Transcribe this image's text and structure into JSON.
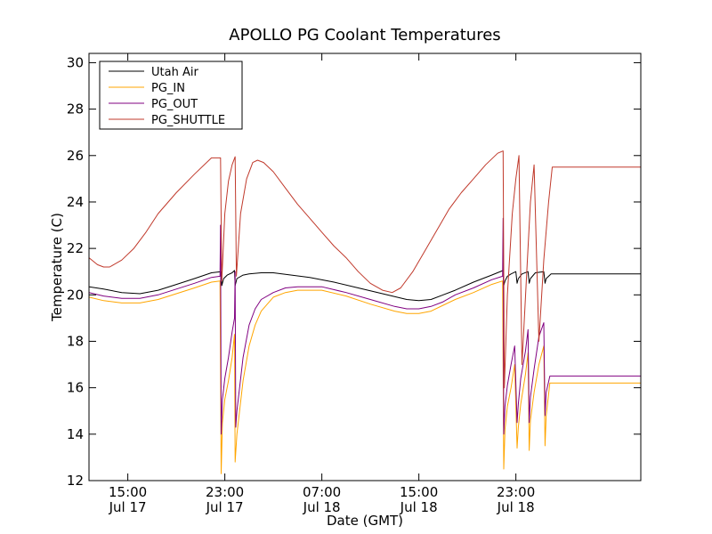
{
  "chart_data": {
    "type": "line",
    "title": "APOLLO PG Coolant Temperatures",
    "xlabel": "Date (GMT)",
    "ylabel": "Temperature (C)",
    "xlim": [
      11.8,
      57.3
    ],
    "ylim": [
      12,
      30.4
    ],
    "x_unit": "hours since Jul 17 00:00 GMT",
    "yticks": [
      12,
      14,
      16,
      18,
      20,
      22,
      24,
      26,
      28,
      30
    ],
    "xticks": [
      {
        "x": 15,
        "time": "15:00",
        "date": "Jul 17"
      },
      {
        "x": 23,
        "time": "23:00",
        "date": "Jul 17"
      },
      {
        "x": 31,
        "time": "07:00",
        "date": "Jul 18"
      },
      {
        "x": 39,
        "time": "15:00",
        "date": "Jul 18"
      },
      {
        "x": 47,
        "time": "23:00",
        "date": "Jul 18"
      }
    ],
    "legend_position": "top-left",
    "series": [
      {
        "name": "Utah Air",
        "color": "#000000",
        "x": [
          11.8,
          13.0,
          14.5,
          16.0,
          17.5,
          19.0,
          20.5,
          21.9,
          22.7,
          22.75,
          22.9,
          23.2,
          23.6,
          23.8,
          23.85,
          24.0,
          24.5,
          25.0,
          26.0,
          27.0,
          28.5,
          30.0,
          32.0,
          34.0,
          36.0,
          38.0,
          39.0,
          40.0,
          41.0,
          42.0,
          43.5,
          45.0,
          45.95,
          46.0,
          46.1,
          46.3,
          46.6,
          47.0,
          47.1,
          47.2,
          47.5,
          48.0,
          48.1,
          48.2,
          48.6,
          49.3,
          49.4,
          49.5,
          49.9,
          57.3
        ],
        "y": [
          20.35,
          20.25,
          20.1,
          20.05,
          20.2,
          20.45,
          20.7,
          20.95,
          21.0,
          20.4,
          20.7,
          20.85,
          20.95,
          21.05,
          20.4,
          20.7,
          20.85,
          20.9,
          20.95,
          20.95,
          20.85,
          20.75,
          20.55,
          20.3,
          20.05,
          19.8,
          19.75,
          19.8,
          20.0,
          20.2,
          20.55,
          20.85,
          21.05,
          20.4,
          20.6,
          20.8,
          20.9,
          21.0,
          20.5,
          20.7,
          20.9,
          21.0,
          20.5,
          20.7,
          20.95,
          21.0,
          20.5,
          20.7,
          20.9,
          20.9
        ]
      },
      {
        "name": "PG_IN",
        "color": "#ffa500",
        "x": [
          11.8,
          13.0,
          14.5,
          16.0,
          17.5,
          19.0,
          20.5,
          21.9,
          22.6,
          22.7,
          22.8,
          23.0,
          23.3,
          23.6,
          23.8,
          23.85,
          24.0,
          24.5,
          25.0,
          25.5,
          26.0,
          27.0,
          28.0,
          29.0,
          30.0,
          31.0,
          33.0,
          35.0,
          37.0,
          38.0,
          39.0,
          40.0,
          41.0,
          42.0,
          43.5,
          45.0,
          45.9,
          46.0,
          46.1,
          46.3,
          46.6,
          46.9,
          47.1,
          47.2,
          47.4,
          47.8,
          48.0,
          48.1,
          48.2,
          48.5,
          48.9,
          49.3,
          49.4,
          49.5,
          49.8,
          57.3
        ],
        "y": [
          19.9,
          19.75,
          19.65,
          19.65,
          19.8,
          20.05,
          20.3,
          20.55,
          20.6,
          12.3,
          14.5,
          15.5,
          16.3,
          17.3,
          18.3,
          12.8,
          14.0,
          16.3,
          17.8,
          18.7,
          19.3,
          19.9,
          20.1,
          20.2,
          20.2,
          20.2,
          19.95,
          19.6,
          19.3,
          19.2,
          19.2,
          19.3,
          19.55,
          19.8,
          20.1,
          20.45,
          20.6,
          12.5,
          14.2,
          15.2,
          16.0,
          17.0,
          13.4,
          14.3,
          15.3,
          16.6,
          17.5,
          13.3,
          14.6,
          15.8,
          17.0,
          17.8,
          13.5,
          14.8,
          16.2,
          16.2
        ]
      },
      {
        "name": "PG_OUT",
        "color": "#800080",
        "x": [
          11.8,
          13.0,
          14.5,
          16.0,
          17.5,
          19.0,
          20.5,
          21.9,
          22.6,
          22.65,
          22.7,
          22.8,
          23.0,
          23.3,
          23.6,
          23.8,
          23.85,
          23.9,
          24.0,
          24.5,
          25.0,
          25.5,
          26.0,
          27.0,
          28.0,
          29.0,
          30.0,
          31.0,
          33.0,
          35.0,
          37.0,
          38.0,
          39.0,
          40.0,
          41.0,
          42.0,
          43.5,
          45.0,
          45.9,
          45.95,
          46.0,
          46.1,
          46.3,
          46.6,
          46.9,
          47.1,
          47.2,
          47.4,
          47.8,
          48.0,
          48.1,
          48.2,
          48.5,
          48.9,
          49.3,
          49.4,
          49.5,
          49.8,
          57.3
        ],
        "y": [
          20.1,
          19.95,
          19.85,
          19.85,
          20.0,
          20.25,
          20.5,
          20.75,
          20.8,
          23.0,
          14.0,
          15.5,
          16.4,
          17.3,
          18.4,
          19.0,
          21.0,
          14.3,
          15.0,
          17.3,
          18.7,
          19.4,
          19.8,
          20.1,
          20.3,
          20.35,
          20.35,
          20.35,
          20.1,
          19.8,
          19.5,
          19.4,
          19.4,
          19.5,
          19.7,
          20.0,
          20.3,
          20.65,
          20.8,
          23.3,
          14.0,
          15.2,
          16.1,
          17.0,
          17.8,
          14.5,
          15.3,
          16.4,
          17.6,
          18.5,
          14.5,
          15.6,
          16.8,
          18.2,
          18.8,
          14.8,
          15.8,
          16.5,
          16.5
        ]
      },
      {
        "name": "PG_SHUTTLE",
        "color": "#c0392b",
        "x": [
          11.8,
          12.5,
          13.0,
          13.5,
          14.5,
          15.5,
          16.5,
          17.5,
          19.0,
          20.5,
          21.9,
          22.65,
          22.75,
          23.0,
          23.3,
          23.6,
          23.85,
          23.95,
          24.3,
          24.8,
          25.3,
          25.7,
          26.2,
          27.0,
          28.0,
          29.0,
          30.0,
          31.0,
          32.0,
          33.0,
          34.0,
          35.0,
          36.0,
          36.8,
          37.5,
          38.5,
          39.5,
          40.5,
          41.5,
          42.5,
          43.5,
          44.5,
          45.5,
          45.95,
          46.05,
          46.3,
          46.7,
          47.0,
          47.25,
          47.5,
          47.9,
          48.2,
          48.5,
          48.9,
          49.3,
          49.7,
          50.0,
          57.3
        ],
        "y": [
          21.6,
          21.3,
          21.2,
          21.2,
          21.5,
          22.0,
          22.7,
          23.5,
          24.4,
          25.2,
          25.9,
          25.9,
          20.6,
          23.5,
          24.9,
          25.6,
          25.95,
          20.8,
          23.5,
          25.0,
          25.7,
          25.8,
          25.7,
          25.3,
          24.6,
          23.9,
          23.3,
          22.7,
          22.1,
          21.6,
          21.0,
          20.5,
          20.2,
          20.1,
          20.3,
          21.0,
          21.9,
          22.8,
          23.7,
          24.4,
          25.0,
          25.6,
          26.1,
          26.2,
          16.0,
          20.0,
          23.5,
          25.0,
          26.0,
          17.0,
          21.0,
          24.0,
          25.6,
          18.0,
          21.5,
          24.0,
          25.5,
          25.5
        ]
      }
    ]
  }
}
